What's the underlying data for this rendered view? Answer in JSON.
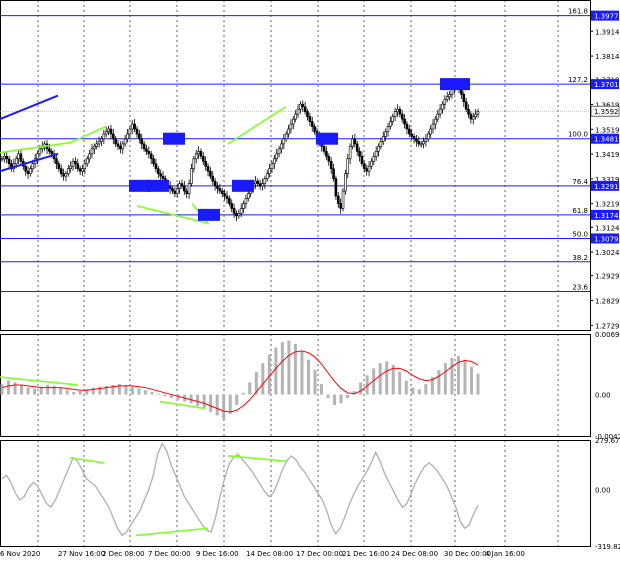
{
  "chart_data": [
    {
      "type": "candlestick",
      "pane": "price",
      "ylim": [
        1.271,
        1.404
      ],
      "grid": true,
      "y_ticks": [
        "1.3914",
        "1.3814",
        "1.3719",
        "1.3619",
        "1.3519",
        "1.3419",
        "1.3319",
        "1.3219",
        "1.3124",
        "1.3024",
        "1.2929",
        "1.2829",
        "1.2729"
      ],
      "fib_levels": [
        {
          "label": "161.8",
          "price": 1.3977,
          "tag": "1.3977"
        },
        {
          "label": "127.2",
          "price": 1.3701,
          "tag": "1.3701"
        },
        {
          "label": "100.0",
          "price": 1.3481,
          "tag": "1.3481"
        },
        {
          "label": "76.4",
          "price": 1.3291,
          "tag": "1.3291"
        },
        {
          "label": "61.8",
          "price": 1.3174,
          "tag": "1.3174"
        },
        {
          "label": "50.0",
          "price": 1.3079,
          "tag": "1.3079"
        },
        {
          "label": "38.2",
          "price": 1.2985,
          "tag": ""
        },
        {
          "label": "23.6",
          "price": 1.2865,
          "tag": ""
        }
      ],
      "current_price": {
        "price": 1.3592,
        "tag": "1.3592"
      },
      "trendlines_green": [
        [
          [
            0,
            1.3425
          ],
          [
            70,
            1.3465
          ],
          [
            106,
            1.353
          ]
        ],
        [
          [
            137,
            1.321
          ],
          [
            208,
            1.314
          ],
          [
            192,
            1.322
          ]
        ],
        [
          [
            228,
            1.346
          ],
          [
            286,
            1.361
          ]
        ]
      ],
      "trendlines_blue": [
        [
          [
            0,
            1.356
          ],
          [
            58,
            1.3655
          ]
        ],
        [
          [
            0,
            1.335
          ],
          [
            58,
            1.342
          ]
        ]
      ],
      "closes": [
        1.34,
        1.341,
        1.34,
        1.338,
        1.336,
        1.338,
        1.34,
        1.342,
        1.339,
        1.337,
        1.335,
        1.334,
        1.336,
        1.338,
        1.34,
        1.342,
        1.344,
        1.345,
        1.346,
        1.344,
        1.343,
        1.342,
        1.34,
        1.338,
        1.336,
        1.334,
        1.333,
        1.334,
        1.336,
        1.337,
        1.339,
        1.338,
        1.336,
        1.335,
        1.336,
        1.338,
        1.34,
        1.342,
        1.344,
        1.345,
        1.346,
        1.347,
        1.348,
        1.35,
        1.351,
        1.352,
        1.35,
        1.348,
        1.346,
        1.345,
        1.344,
        1.346,
        1.348,
        1.35,
        1.352,
        1.354,
        1.352,
        1.35,
        1.348,
        1.346,
        1.344,
        1.343,
        1.342,
        1.34,
        1.338,
        1.336,
        1.334,
        1.333,
        1.332,
        1.33,
        1.329,
        1.328,
        1.327,
        1.326,
        1.328,
        1.33,
        1.329,
        1.327,
        1.326,
        1.33,
        1.336,
        1.34,
        1.342,
        1.343,
        1.341,
        1.339,
        1.337,
        1.335,
        1.333,
        1.331,
        1.329,
        1.328,
        1.327,
        1.326,
        1.325,
        1.324,
        1.322,
        1.32,
        1.318,
        1.317,
        1.318,
        1.32,
        1.322,
        1.324,
        1.326,
        1.328,
        1.33,
        1.331,
        1.33,
        1.329,
        1.33,
        1.332,
        1.334,
        1.336,
        1.338,
        1.34,
        1.342,
        1.344,
        1.346,
        1.348,
        1.35,
        1.352,
        1.354,
        1.356,
        1.358,
        1.36,
        1.362,
        1.361,
        1.359,
        1.357,
        1.355,
        1.353,
        1.351,
        1.349,
        1.347,
        1.345,
        1.343,
        1.341,
        1.339,
        1.336,
        1.332,
        1.325,
        1.322,
        1.32,
        1.327,
        1.334,
        1.34,
        1.345,
        1.348,
        1.346,
        1.343,
        1.341,
        1.338,
        1.336,
        1.335,
        1.337,
        1.339,
        1.341,
        1.343,
        1.345,
        1.347,
        1.349,
        1.351,
        1.353,
        1.355,
        1.357,
        1.359,
        1.36,
        1.358,
        1.356,
        1.354,
        1.352,
        1.35,
        1.349,
        1.348,
        1.347,
        1.346,
        1.346,
        1.347,
        1.348,
        1.35,
        1.352,
        1.354,
        1.356,
        1.358,
        1.36,
        1.362,
        1.364,
        1.365,
        1.366,
        1.368,
        1.369,
        1.37,
        1.368,
        1.366,
        1.363,
        1.36,
        1.358,
        1.356,
        1.357,
        1.358,
        1.359
      ],
      "boxes": [
        {
          "x": 140,
          "price": 1.3291
        },
        {
          "x": 158,
          "price": 1.3291
        },
        {
          "x": 174,
          "price": 1.3481
        },
        {
          "x": 243,
          "price": 1.3291
        },
        {
          "x": 209,
          "price": 1.3174
        },
        {
          "x": 327,
          "price": 1.3481
        },
        {
          "x": 455,
          "price": 1.3701
        }
      ]
    },
    {
      "type": "bar",
      "pane": "macd",
      "ylim": [
        -0.00475,
        0.00694
      ],
      "y_ticks": [
        "0.00694",
        "0.00",
        "-0.00475"
      ],
      "values": [
        0.0012,
        0.0016,
        0.0014,
        0.0011,
        0.0008,
        0.0007,
        0.0009,
        0.0011,
        0.001,
        0.0008,
        0.0005,
        0.0003,
        0.0004,
        0.0006,
        0.0008,
        0.0009,
        0.001,
        0.0011,
        0.0012,
        0.0011,
        0.0009,
        0.0007,
        0.0005,
        0.0003,
        0.0001,
        -0.0002,
        -0.0004,
        -0.0006,
        -0.0008,
        -0.001,
        -0.0013,
        -0.0016,
        -0.002,
        -0.0024,
        -0.0028,
        -0.0022,
        -0.0012,
        0.0002,
        0.0014,
        0.0026,
        0.0036,
        0.0046,
        0.0054,
        0.006,
        0.0062,
        0.0058,
        0.005,
        0.004,
        0.0028,
        0.0012,
        -0.0004,
        -0.0012,
        -0.001,
        -0.0004,
        0.0004,
        0.0014,
        0.0022,
        0.003,
        0.0036,
        0.0038,
        0.0034,
        0.0026,
        0.0016,
        0.0008,
        0.0006,
        0.0012,
        0.002,
        0.0028,
        0.0036,
        0.0042,
        0.0044,
        0.004,
        0.0032,
        0.0024
      ],
      "signal": [
        0.0008,
        0.001,
        0.0011,
        0.0011,
        0.001,
        0.0009,
        0.0008,
        0.0008,
        0.0008,
        0.0008,
        0.0007,
        0.0006,
        0.0005,
        0.0005,
        0.0006,
        0.0007,
        0.0008,
        0.0009,
        0.001,
        0.001,
        0.001,
        0.0009,
        0.0008,
        0.0006,
        0.0004,
        0.0002,
        0.0,
        -0.0002,
        -0.0004,
        -0.0006,
        -0.0008,
        -0.001,
        -0.0013,
        -0.0016,
        -0.0019,
        -0.002,
        -0.0018,
        -0.0013,
        -0.0006,
        0.0003,
        0.0012,
        0.0021,
        0.003,
        0.0038,
        0.0045,
        0.0049,
        0.005,
        0.0048,
        0.0043,
        0.0035,
        0.0025,
        0.0015,
        0.0007,
        0.0002,
        0.0001,
        0.0004,
        0.001,
        0.0016,
        0.0022,
        0.0027,
        0.003,
        0.003,
        0.0027,
        0.0022,
        0.0018,
        0.0016,
        0.0017,
        0.0021,
        0.0026,
        0.0032,
        0.0037,
        0.0039,
        0.0038,
        0.0034
      ],
      "divergences": [
        [
          [
            0,
            0.002
          ],
          [
            78,
            0.0011
          ]
        ],
        [
          [
            160,
            -0.0008
          ],
          [
            205,
            -0.0016
          ]
        ]
      ]
    },
    {
      "type": "line",
      "pane": "cci",
      "ylim": [
        -319.8222,
        279.6732
      ],
      "y_ticks": [
        "279.6732",
        "0.00",
        "-319.8222"
      ],
      "values": [
        60,
        80,
        40,
        -20,
        -60,
        -40,
        10,
        40,
        20,
        -30,
        -80,
        -100,
        -60,
        0,
        60,
        120,
        180,
        160,
        110,
        60,
        40,
        20,
        -20,
        -60,
        -100,
        -160,
        -220,
        -260,
        -240,
        -200,
        -160,
        -120,
        -60,
        0,
        80,
        200,
        260,
        220,
        140,
        80,
        20,
        -40,
        -80,
        -120,
        -160,
        -200,
        -230,
        -240,
        -160,
        -40,
        60,
        140,
        180,
        200,
        170,
        140,
        110,
        70,
        30,
        -10,
        -40,
        -20,
        40,
        110,
        160,
        190,
        170,
        130,
        100,
        60,
        20,
        -20,
        -60,
        -120,
        -200,
        -250,
        -220,
        -160,
        -90,
        -30,
        20,
        60,
        100,
        150,
        210,
        160,
        90,
        40,
        -10,
        -60,
        -100,
        -80,
        -20,
        40,
        90,
        130,
        150,
        130,
        100,
        60,
        20,
        -40,
        -100,
        -180,
        -220,
        -200,
        -140,
        -90
      ]
    }
  ],
  "x_labels": [
    "6 Nov 2020",
    "27 Nov 16:00",
    "2 Dec 08:00",
    "7 Dec 00:00",
    "9 Dec 16:00",
    "14 Dec 08:00",
    "17 Dec 00:00",
    "21 Dec 16:00",
    "24 Dec 08:00",
    "30 Dec 00:00",
    "4 Jan 16:00"
  ],
  "colors": {
    "up_candle": "#000000",
    "level_line": "#1a1aff",
    "tag_bg": "#1a1aff",
    "divergence": "#7fff2a",
    "macd_bar": "#b4b4b4",
    "signal": "#ff0000",
    "cci": "#b4b4b4",
    "grid": "#000000"
  }
}
